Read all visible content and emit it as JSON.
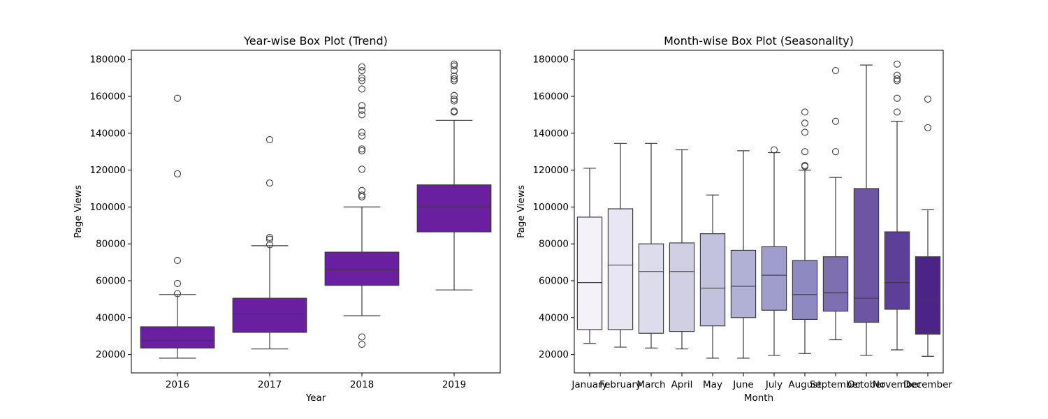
{
  "chart_data": [
    {
      "type": "box",
      "title": "Year-wise Box Plot (Trend)",
      "xlabel": "Year",
      "ylabel": "Page Views",
      "ylim": [
        10000,
        185000
      ],
      "yticks": [
        20000,
        40000,
        60000,
        80000,
        100000,
        120000,
        140000,
        160000,
        180000
      ],
      "grid": false,
      "box_color": "#6a1fa0",
      "categories": [
        "2016",
        "2017",
        "2018",
        "2019"
      ],
      "boxes": [
        {
          "category": "2016",
          "whisker_low": 18000,
          "q1": 23500,
          "median": 27500,
          "q3": 35000,
          "whisker_high": 52500,
          "outliers": [
            53000,
            58500,
            71000,
            118000,
            159000
          ]
        },
        {
          "category": "2017",
          "whisker_low": 23000,
          "q1": 32000,
          "median": 42000,
          "q3": 50500,
          "whisker_high": 79000,
          "outliers": [
            79500,
            82500,
            83500,
            113000,
            136500
          ]
        },
        {
          "category": "2018",
          "whisker_low": 41000,
          "q1": 57500,
          "median": 66000,
          "q3": 75500,
          "whisker_high": 100000,
          "outliers": [
            25500,
            29500,
            105500,
            106500,
            109000,
            120500,
            130500,
            131500,
            138500,
            140500,
            150000,
            152500,
            155000,
            164000,
            168500,
            170000,
            174000,
            176000
          ]
        },
        {
          "category": "2019",
          "whisker_low": 55000,
          "q1": 86500,
          "median": 100000,
          "q3": 112000,
          "whisker_high": 147000,
          "outliers": [
            151500,
            152000,
            157500,
            158500,
            160500,
            168500,
            169500,
            171000,
            174000,
            176500,
            177500
          ]
        }
      ]
    },
    {
      "type": "box",
      "title": "Month-wise Box Plot (Seasonality)",
      "xlabel": "Month",
      "ylabel": "Page Views",
      "ylim": [
        10000,
        185000
      ],
      "yticks": [
        20000,
        40000,
        60000,
        80000,
        100000,
        120000,
        140000,
        160000,
        180000
      ],
      "grid": false,
      "categories": [
        "January",
        "February",
        "March",
        "April",
        "May",
        "June",
        "July",
        "August",
        "September",
        "October",
        "November",
        "December"
      ],
      "box_colors": [
        "#f4f2f8",
        "#e8e6f2",
        "#dddcec",
        "#d0cfe4",
        "#c2c2de",
        "#b1b0d5",
        "#a09ccb",
        "#8e89c0",
        "#7e6fb0",
        "#6d55a3",
        "#5d3e98",
        "#4c2386"
      ],
      "boxes": [
        {
          "category": "January",
          "whisker_low": 26000,
          "q1": 33500,
          "median": 59000,
          "q3": 94500,
          "whisker_high": 121000,
          "outliers": []
        },
        {
          "category": "February",
          "whisker_low": 24000,
          "q1": 33500,
          "median": 68500,
          "q3": 99000,
          "whisker_high": 134500,
          "outliers": []
        },
        {
          "category": "March",
          "whisker_low": 23500,
          "q1": 31500,
          "median": 65000,
          "q3": 80000,
          "whisker_high": 134500,
          "outliers": []
        },
        {
          "category": "April",
          "whisker_low": 23000,
          "q1": 32500,
          "median": 65000,
          "q3": 80500,
          "whisker_high": 131000,
          "outliers": []
        },
        {
          "category": "May",
          "whisker_low": 18000,
          "q1": 35500,
          "median": 56000,
          "q3": 85500,
          "whisker_high": 106500,
          "outliers": []
        },
        {
          "category": "June",
          "whisker_low": 18000,
          "q1": 40000,
          "median": 57000,
          "q3": 76500,
          "whisker_high": 130500,
          "outliers": []
        },
        {
          "category": "July",
          "whisker_low": 19500,
          "q1": 44000,
          "median": 63000,
          "q3": 78500,
          "whisker_high": 129500,
          "outliers": [
            131000
          ]
        },
        {
          "category": "August",
          "whisker_low": 20500,
          "q1": 39000,
          "median": 52500,
          "q3": 71000,
          "whisker_high": 120000,
          "outliers": [
            122000,
            122500,
            130000,
            140500,
            145500,
            151500
          ]
        },
        {
          "category": "September",
          "whisker_low": 28000,
          "q1": 43500,
          "median": 53500,
          "q3": 73000,
          "whisker_high": 116000,
          "outliers": [
            130000,
            146500,
            174000
          ]
        },
        {
          "category": "October",
          "whisker_low": 19500,
          "q1": 37500,
          "median": 50500,
          "q3": 110000,
          "whisker_high": 177000,
          "outliers": []
        },
        {
          "category": "November",
          "whisker_low": 22500,
          "q1": 44500,
          "median": 59000,
          "q3": 86500,
          "whisker_high": 146500,
          "outliers": [
            151500,
            159000,
            168500,
            169500,
            171500,
            177500
          ]
        },
        {
          "category": "December",
          "whisker_low": 19000,
          "q1": 31000,
          "median": 49000,
          "q3": 73000,
          "whisker_high": 98500,
          "outliers": [
            143000,
            158500
          ]
        }
      ]
    }
  ]
}
